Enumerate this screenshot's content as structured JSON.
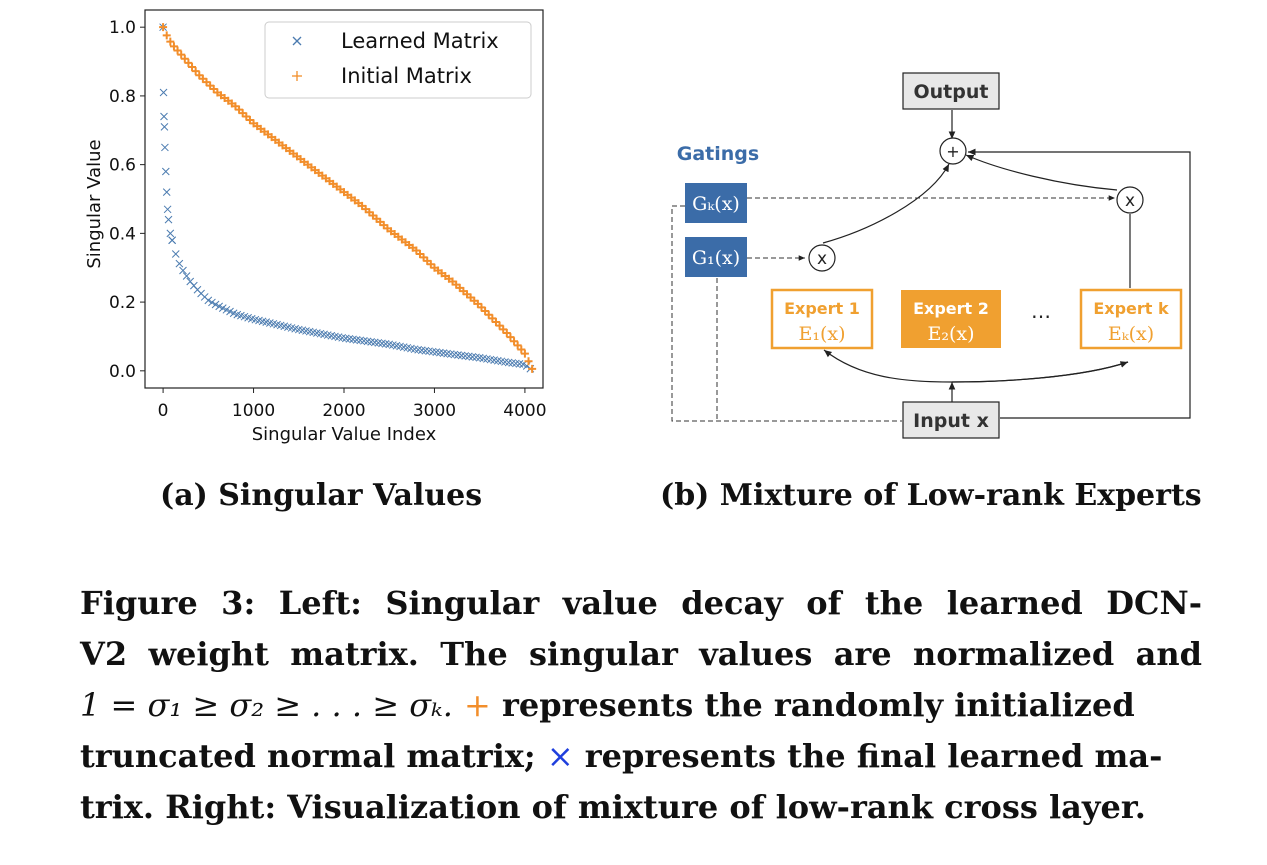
{
  "chart_data": {
    "type": "scatter",
    "xlabel": "Singular Value Index",
    "ylabel": "Singular Value",
    "xlim": [
      -200,
      4200
    ],
    "ylim": [
      -0.05,
      1.05
    ],
    "xticks": [
      "0",
      "1000",
      "2000",
      "3000",
      "4000"
    ],
    "yticks": [
      "0.0",
      "0.2",
      "0.4",
      "0.6",
      "0.8",
      "1.0"
    ],
    "legend_position": "top-right",
    "series": [
      {
        "name": "Learned Matrix",
        "marker": "x",
        "color": "#4c7cb0",
        "x": [
          0,
          5,
          10,
          15,
          20,
          30,
          40,
          50,
          60,
          80,
          100,
          150,
          200,
          300,
          400,
          500,
          600,
          800,
          1000,
          1200,
          1500,
          1800,
          2000,
          2200,
          2500,
          2800,
          3000,
          3200,
          3500,
          3800,
          4000,
          4090
        ],
        "y": [
          1.0,
          0.81,
          0.74,
          0.71,
          0.65,
          0.58,
          0.52,
          0.47,
          0.44,
          0.4,
          0.38,
          0.33,
          0.3,
          0.26,
          0.23,
          0.205,
          0.19,
          0.165,
          0.15,
          0.138,
          0.12,
          0.105,
          0.095,
          0.088,
          0.077,
          0.062,
          0.055,
          0.048,
          0.038,
          0.025,
          0.018,
          0.0
        ]
      },
      {
        "name": "Initial Matrix",
        "marker": "+",
        "color": "#f28e2b",
        "x": [
          0,
          50,
          100,
          200,
          300,
          400,
          600,
          800,
          1000,
          1200,
          1500,
          1800,
          2000,
          2200,
          2500,
          2800,
          3000,
          3200,
          3500,
          3800,
          4000,
          4090
        ],
        "y": [
          1.0,
          0.97,
          0.95,
          0.92,
          0.89,
          0.86,
          0.81,
          0.77,
          0.72,
          0.68,
          0.62,
          0.56,
          0.52,
          0.48,
          0.41,
          0.35,
          0.3,
          0.26,
          0.19,
          0.11,
          0.05,
          0.0
        ]
      }
    ]
  },
  "diagram": {
    "gatings_label": "Gatings",
    "gate_k": "Gₖ(x)",
    "gate_1": "G₁(x)",
    "output": "Output",
    "plus": "+",
    "mult": "x",
    "input": "Input x",
    "experts": [
      {
        "title": "Expert 1",
        "fn": "E₁(x)"
      },
      {
        "title": "Expert 2",
        "fn": "E₂(x)"
      },
      {
        "title": "Expert k",
        "fn": "Eₖ(x)"
      }
    ],
    "ellipsis": "…",
    "gate_color": "#3b6ca8",
    "expert_color": "#f0a030"
  },
  "subcaptions": {
    "a": "(a) Singular Values",
    "b": "(b) Mixture of Low-rank Experts"
  },
  "caption": {
    "line1": "Figure 3: Left: Singular value decay of the learned DCN-",
    "line2": "V2 weight matrix. The singular values are normalized and",
    "line3_math": "1 = σ₁ ≥ σ₂ ≥ . . . ≥ σₖ.",
    "line3_plus": "+",
    "line3_text": "represents the randomly initialized",
    "line4_text": "truncated normal matrix;",
    "line4_x": "×",
    "line4_rest": "represents the final learned ma-",
    "line5": "trix. Right: Visualization of mixture of low-rank cross layer."
  }
}
